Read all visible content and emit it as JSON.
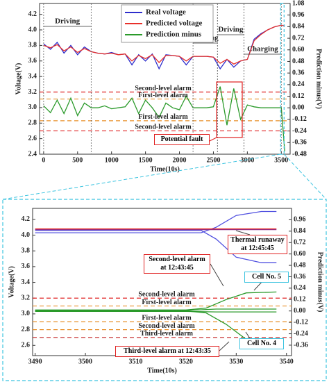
{
  "chart_data": [
    {
      "type": "line",
      "x": [
        0,
        100,
        200,
        300,
        400,
        500,
        600,
        700,
        800,
        900,
        1000,
        1100,
        1200,
        1300,
        1400,
        1500,
        1600,
        1700,
        1800,
        1900,
        2000,
        2100,
        2200,
        2300,
        2400,
        2500,
        2600,
        2700,
        2800,
        2900,
        3000,
        3100,
        3200,
        3300,
        3400,
        3500,
        3550
      ],
      "series": [
        {
          "name": "Real voltage",
          "color": "#2e2ecc",
          "values": [
            3.82,
            3.75,
            3.84,
            3.7,
            3.8,
            3.68,
            3.78,
            3.72,
            3.7,
            3.69,
            3.71,
            3.68,
            3.69,
            3.55,
            3.68,
            3.6,
            3.69,
            3.5,
            3.68,
            3.67,
            3.66,
            3.55,
            3.66,
            3.66,
            3.66,
            3.65,
            3.5,
            3.62,
            3.52,
            3.6,
            3.62,
            3.88,
            3.95,
            4.0,
            4.04,
            4.06,
            4.05
          ]
        },
        {
          "name": "Predicted voltage",
          "color": "#e8302a",
          "values": [
            3.8,
            3.77,
            3.81,
            3.73,
            3.78,
            3.71,
            3.76,
            3.72,
            3.7,
            3.69,
            3.7,
            3.68,
            3.69,
            3.6,
            3.67,
            3.63,
            3.68,
            3.58,
            3.67,
            3.67,
            3.66,
            3.6,
            3.66,
            3.66,
            3.66,
            3.65,
            3.57,
            3.62,
            3.56,
            3.6,
            3.62,
            3.86,
            3.94,
            4.0,
            4.04,
            4.06,
            4.05
          ]
        },
        {
          "name": "Prediction minus",
          "color": "#2a9a2a",
          "axis": "y2",
          "values": [
            0.02,
            -0.05,
            0.08,
            -0.06,
            0.1,
            -0.08,
            0.05,
            0.0,
            0.0,
            0.02,
            -0.01,
            0.0,
            0.01,
            0.1,
            -0.06,
            0.08,
            0.0,
            -0.1,
            0.05,
            0.0,
            -0.02,
            0.12,
            0.0,
            0.0,
            0.0,
            0.01,
            0.22,
            -0.18,
            0.2,
            -0.12,
            0.03,
            0.01,
            0.0,
            0.0,
            0.0,
            0.0,
            -0.45
          ]
        }
      ],
      "xlim": [
        -60,
        3630
      ],
      "ylim": [
        2.4,
        4.34
      ],
      "y2lim": [
        -0.48,
        1.08
      ],
      "xticks": [
        0,
        500,
        1000,
        1500,
        2000,
        2500,
        3000,
        3500
      ],
      "yticks": [
        2.4,
        2.6,
        2.8,
        {
          "value": 3.0,
          "label": "3.0"
        },
        3.2,
        3.4,
        3.6,
        3.8,
        {
          "value": 4.0,
          "label": "4.0"
        },
        4.2
      ],
      "y2ticks": [
        -0.48,
        -0.36,
        -0.24,
        -0.12,
        {
          "value": 0,
          "label": "0.00"
        },
        0.12,
        0.24,
        0.36,
        0.48,
        {
          "value": 0.6,
          "label": "0.60"
        },
        0.72,
        0.84,
        0.96,
        1.08
      ],
      "xlabel": "Time(10s)",
      "ylabel": "Voltage(V)",
      "y2label": "Prediction minus(V)",
      "legend": "upper center",
      "reference_lines": [
        {
          "label": "Second-level alarm",
          "value": 3.2,
          "color": "#e02020"
        },
        {
          "label": "First-level alarm",
          "value": 3.11,
          "color": "#e8902a"
        },
        {
          "label": "First-level alarm",
          "value": 2.83,
          "color": "#e8902a"
        },
        {
          "label": "Second-level alarm",
          "value": 2.7,
          "color": "#e02020"
        }
      ],
      "spans": [
        {
          "label": "Driving",
          "x": [
            0,
            700
          ]
        },
        {
          "label": "Parking",
          "x": [
            2200,
            2560
          ]
        },
        {
          "label": "Driving",
          "x": [
            2560,
            2950
          ]
        },
        {
          "label": "Charging",
          "x": [
            2950,
            3500
          ]
        }
      ],
      "annotations": [
        {
          "text": "Potential fault"
        }
      ]
    },
    {
      "type": "line",
      "series": [
        {
          "color": "#5050e0",
          "x": [
            3490,
            3523,
            3526,
            3530,
            3535,
            3538
          ],
          "values": [
            4.03,
            4.03,
            4.1,
            4.25,
            4.3,
            4.3
          ]
        },
        {
          "color": "#5050e0",
          "x": [
            3490,
            3523,
            3526,
            3530,
            3535,
            3538
          ],
          "values": [
            4.06,
            4.06,
            3.95,
            3.72,
            3.65,
            3.65
          ]
        },
        {
          "color": "#8a2a8a",
          "x": [
            3490,
            3538
          ],
          "values": [
            4.07,
            4.07
          ]
        },
        {
          "color": "#e8302a",
          "x": [
            3490,
            3538
          ],
          "values": [
            4.08,
            4.08
          ]
        },
        {
          "color": "#2a9a2a",
          "axis": "y2",
          "x": [
            3490,
            3520,
            3524,
            3528,
            3532,
            3538
          ],
          "values": [
            0.01,
            0.01,
            0.03,
            0.12,
            0.19,
            0.2
          ]
        },
        {
          "color": "#2a9a2a",
          "axis": "y2",
          "x": [
            3490,
            3520,
            3524,
            3528,
            3532,
            3538
          ],
          "values": [
            0.0,
            0.0,
            -0.02,
            -0.14,
            -0.3,
            -0.4
          ]
        },
        {
          "color": "#2a9a2a",
          "axis": "y2",
          "x": [
            3490,
            3520,
            3526,
            3538
          ],
          "values": [
            0.005,
            0.005,
            0.02,
            0.02
          ]
        },
        {
          "color": "#2a9a2a",
          "axis": "y2",
          "x": [
            3490,
            3520,
            3526,
            3538
          ],
          "values": [
            -0.005,
            -0.005,
            -0.01,
            -0.01
          ]
        }
      ],
      "xlim": [
        3489.5,
        3541
      ],
      "ylim": [
        2.47,
        4.34
      ],
      "y2lim": [
        -0.47,
        1.08
      ],
      "xticks": [
        3490,
        3500,
        3510,
        3520,
        3530,
        3540
      ],
      "yticks": [
        2.6,
        2.8,
        {
          "value": 3.0,
          "label": "3.0"
        },
        3.2,
        3.4,
        3.6,
        3.8,
        {
          "value": 4.0,
          "label": "4.0"
        },
        4.2
      ],
      "y2ticks": [
        -0.36,
        -0.24,
        -0.12,
        {
          "value": 0,
          "label": "0.00"
        },
        0.12,
        0.24,
        0.36,
        0.48,
        {
          "value": 0.6,
          "label": "0.60"
        },
        0.72,
        0.84,
        0.96
      ],
      "xlabel": "Time(10s)",
      "ylabel": "Voltage(V)",
      "y2label": "Prediction minus(V)",
      "reference_lines": [
        {
          "label": "Second-level alarm",
          "value": 3.2,
          "color": "#e02020"
        },
        {
          "label": "First-level alarm",
          "value": 3.1,
          "color": "#e8902a"
        },
        {
          "label": "First-level alarm",
          "value": 2.9,
          "color": "#e8902a"
        },
        {
          "label": "Second-level alarm",
          "value": 2.8,
          "color": "#e8902a"
        },
        {
          "label": "Third-level alarm",
          "value": 2.7,
          "color": "#c01818"
        }
      ],
      "annotations": [
        {
          "text": "Thermal runaway at 12:45:45"
        },
        {
          "text": "Second-level alarm at 12:43:45"
        },
        {
          "text": "Cell No. 5"
        },
        {
          "text": "Third-level alarm at 12:43:35"
        },
        {
          "text": "Cell No. 4"
        }
      ]
    }
  ]
}
